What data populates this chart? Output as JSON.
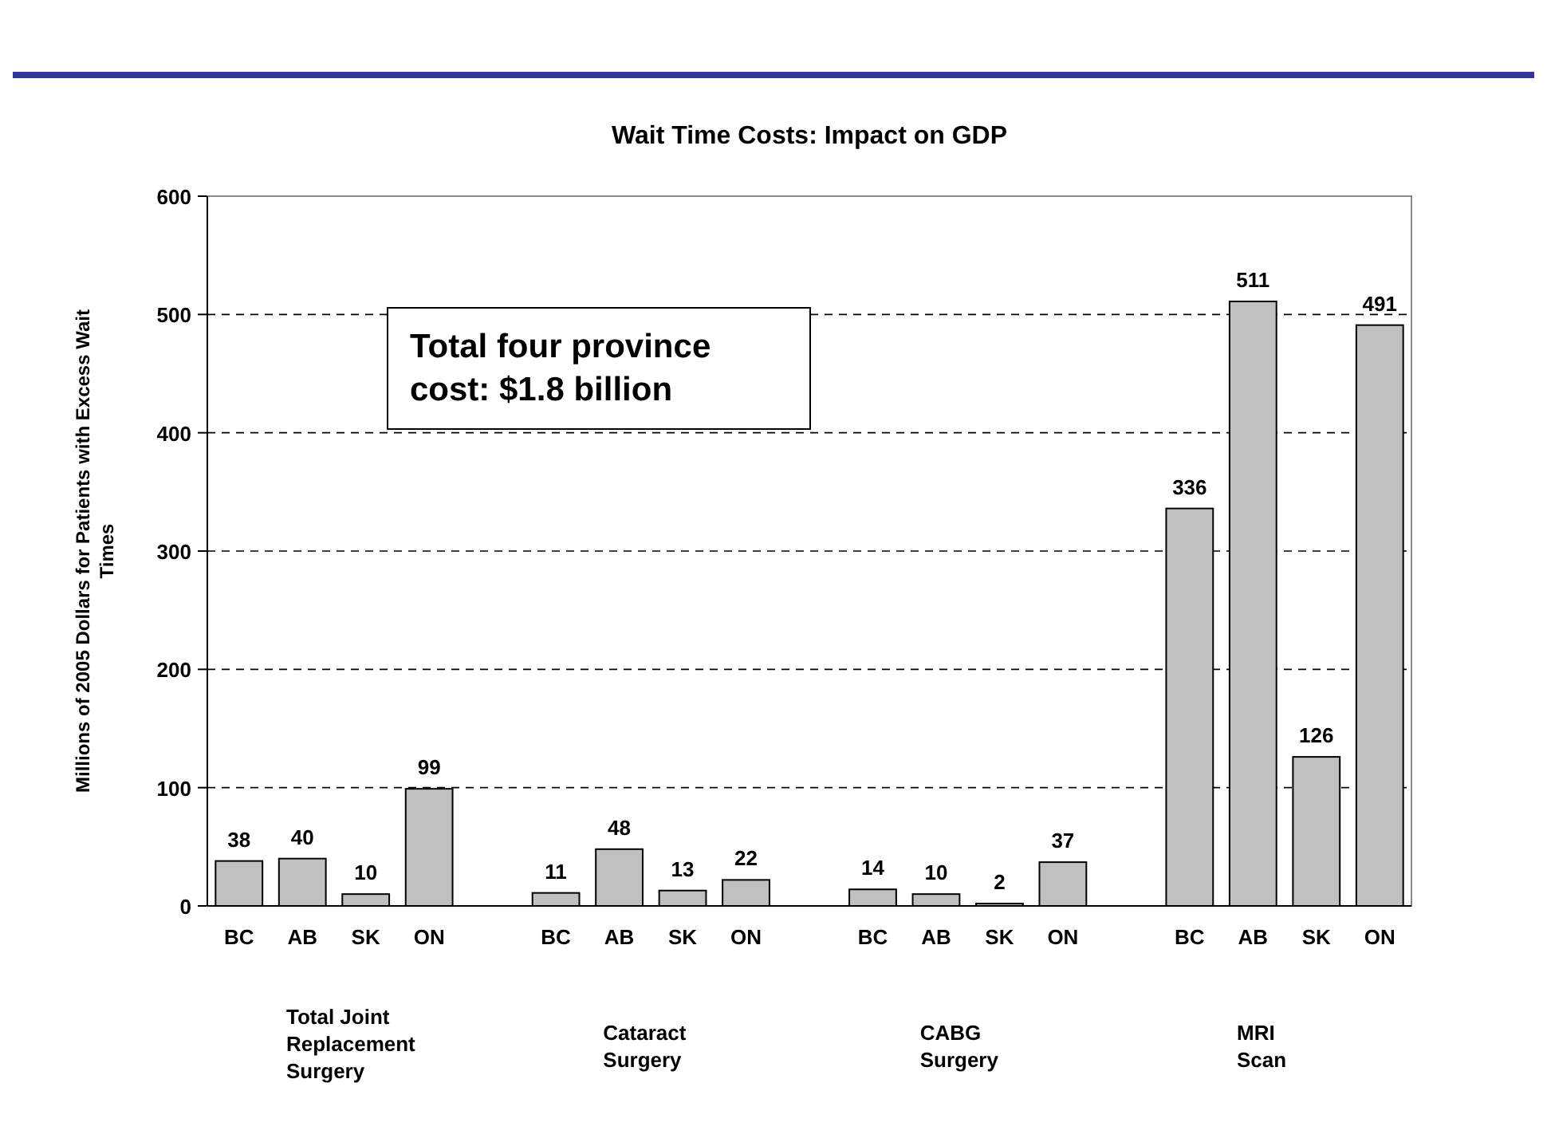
{
  "chart_data": {
    "type": "bar",
    "title": "Wait Time Costs: Impact on GDP",
    "ylabel": "Millions of 2005 Dollars for Patients with Excess Wait Times",
    "categories": [
      "BC",
      "AB",
      "SK",
      "ON",
      null,
      "BC",
      "AB",
      "SK",
      "ON",
      null,
      "BC",
      "AB",
      "SK",
      "ON",
      null,
      "BC",
      "AB",
      "SK",
      "ON"
    ],
    "values": [
      38,
      40,
      10,
      99,
      null,
      11,
      48,
      13,
      22,
      null,
      14,
      10,
      2,
      37,
      null,
      336,
      511,
      126,
      491
    ],
    "color": "#c0c0c0",
    "ylim": [
      0,
      600
    ],
    "yticks": [
      0,
      100,
      200,
      300,
      400,
      500,
      600
    ],
    "grid": "y",
    "data_labels": true,
    "annotations": [
      "Total four province\ncost: $1.8 billion",
      "Total Joint\nReplacement\nSurgery",
      "Cataract\nSurgery",
      "CABG\nSurgery",
      "MRI\nScan"
    ]
  }
}
